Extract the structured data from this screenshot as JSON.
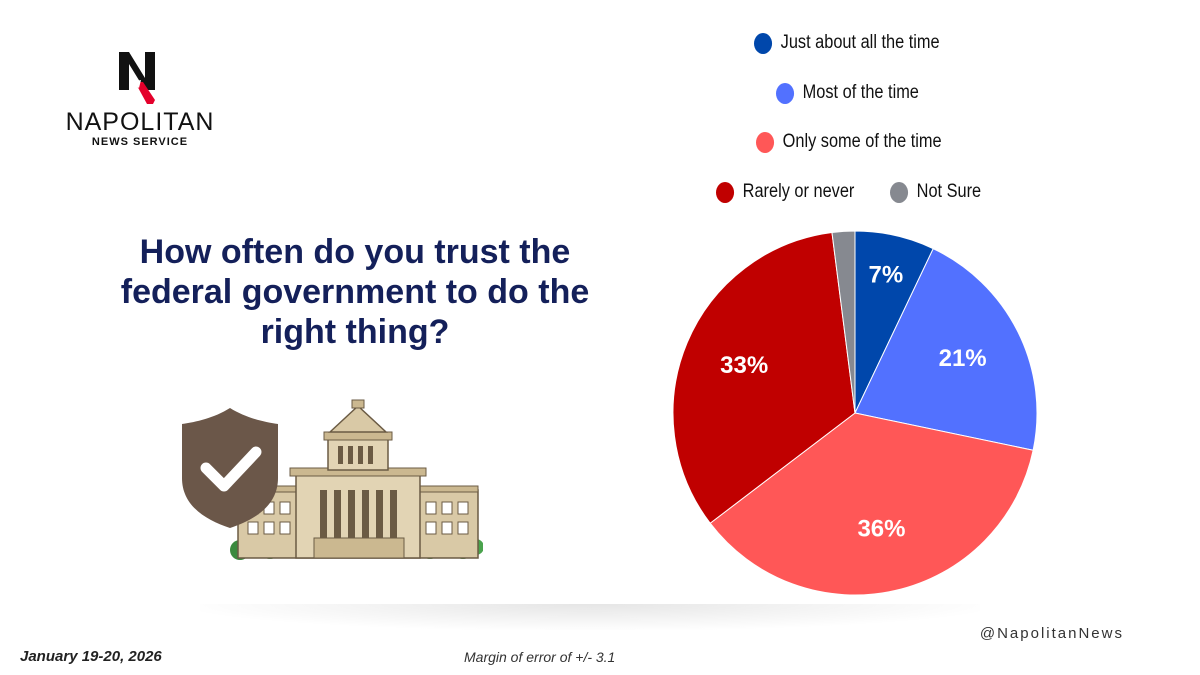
{
  "brand": {
    "name": "NAPOLITAN",
    "subtitle": "NEWS SERVICE",
    "handle": "@NapolitanNews"
  },
  "question": "How often do you trust the federal government to do the right thing?",
  "footer": {
    "date": "January 19-20, 2026",
    "margin_of_error": "Margin of error of +/- 3.1"
  },
  "chart_data": {
    "type": "pie",
    "title": "How often do you trust the federal government to do the right thing?",
    "start_angle": "12 o'clock, clockwise",
    "legend_position": "top-right",
    "slices": [
      {
        "label": "Just about all the time",
        "value": 7,
        "display": "7%",
        "color": "#0047ab"
      },
      {
        "label": "Most of the time",
        "value": 21,
        "display": "21%",
        "color": "#5271ff"
      },
      {
        "label": "Only some of the time",
        "value": 36,
        "display": "36%",
        "color": "#ff5757"
      },
      {
        "label": "Rarely or never",
        "value": 33,
        "display": "33%",
        "color": "#c00000"
      },
      {
        "label": "Not Sure",
        "value": 2,
        "display": "",
        "color": "#868990"
      }
    ]
  }
}
